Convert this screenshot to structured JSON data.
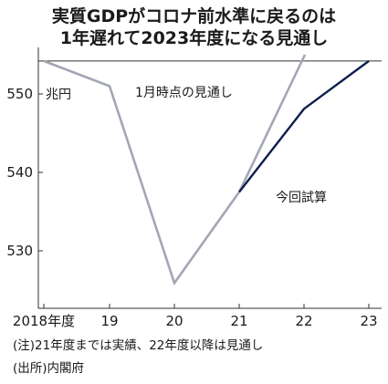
{
  "title_line1": "実質GDPがコロナ前水準に戻るのは",
  "title_line2": "1年遅れて2023年度になる見通し",
  "notes": {
    "note1": "(注)21年度までは実績、22年度以降は見通し",
    "source": "(出所)内閣府"
  },
  "colors": {
    "previous_forecast": "#a3a6b4",
    "current_forecast": "#0d1f4d",
    "axis": "#333333"
  },
  "chart_data": {
    "type": "line",
    "title": "実質GDPがコロナ前水準に戻るのは 1年遅れて2023年度になる見通し",
    "unit": "兆円",
    "x": [
      "2018年度",
      "19",
      "20",
      "21",
      "22",
      "23"
    ],
    "yticks": [
      530,
      540,
      550
    ],
    "ylim": [
      523.5,
      556
    ],
    "reference_line": {
      "value": 554.2
    },
    "series": [
      {
        "name": "1月時点の見通し",
        "points": [
          {
            "x": "2018年度",
            "y": 554.2
          },
          {
            "x": "19",
            "y": 551.0
          },
          {
            "x": "20",
            "y": 525.9
          },
          {
            "x": "21",
            "y": 537.5
          },
          {
            "x": "22",
            "y": 555.5
          }
        ]
      },
      {
        "name": "今回試算",
        "points": [
          {
            "x": "21",
            "y": 537.5
          },
          {
            "x": "22",
            "y": 548.1
          },
          {
            "x": "23",
            "y": 554.2
          }
        ]
      }
    ]
  }
}
